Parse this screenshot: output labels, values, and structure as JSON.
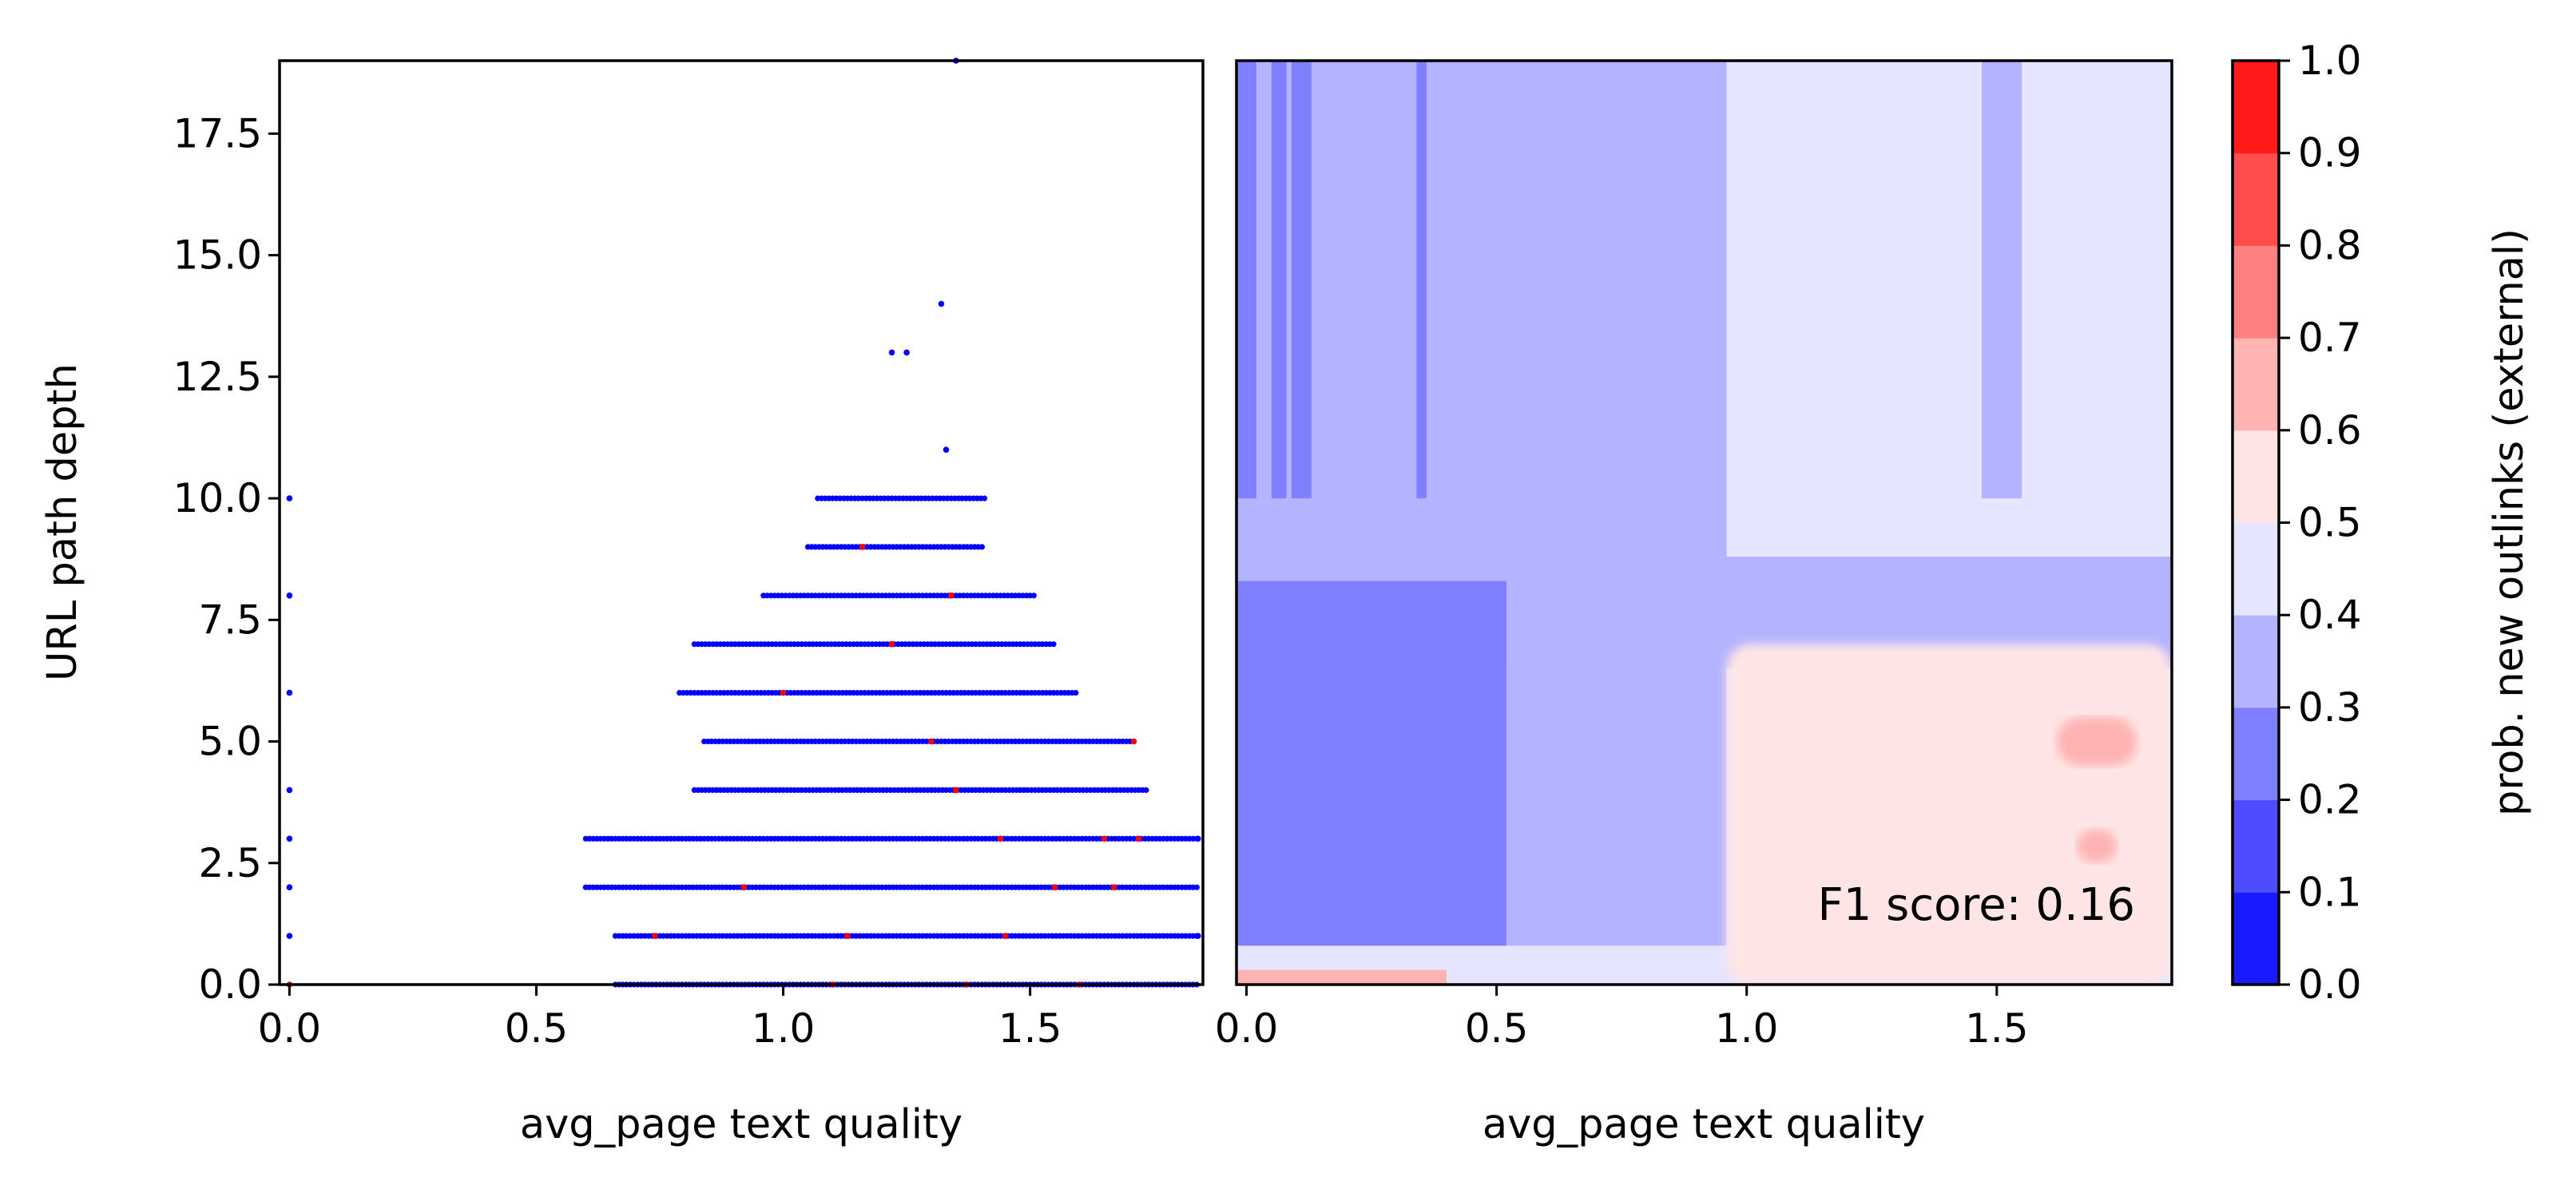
{
  "chart_data": [
    {
      "type": "scatter",
      "xlabel": "avg_page text quality",
      "ylabel": "URL path depth",
      "xlim": [
        -0.02,
        1.85
      ],
      "ylim": [
        0,
        19
      ],
      "x_ticks": [
        "0.0",
        "0.5",
        "1.0",
        "1.5"
      ],
      "x_tick_values": [
        0.0,
        0.5,
        1.0,
        1.5
      ],
      "y_ticks": [
        "0.0",
        "2.5",
        "5.0",
        "7.5",
        "10.0",
        "12.5",
        "15.0",
        "17.5"
      ],
      "y_tick_values": [
        0.0,
        2.5,
        5.0,
        7.5,
        10.0,
        12.5,
        15.0,
        17.5
      ],
      "grid": false,
      "point_colors": {
        "no_new_external_outlinks": "#0000ff",
        "new_external_outlinks": "#ff0000"
      },
      "rows": [
        {
          "y": 0,
          "x_range": [
            0.66,
            1.84
          ]
        },
        {
          "y": 1,
          "x_range": [
            0.66,
            1.84
          ]
        },
        {
          "y": 2,
          "x_range": [
            0.6,
            1.84
          ]
        },
        {
          "y": 3,
          "x_range": [
            0.6,
            1.84
          ]
        },
        {
          "y": 4,
          "x_range": [
            0.82,
            1.74
          ]
        },
        {
          "y": 5,
          "x_range": [
            0.84,
            1.71
          ]
        },
        {
          "y": 6,
          "x_range": [
            0.79,
            1.6
          ]
        },
        {
          "y": 7,
          "x_range": [
            0.82,
            1.55
          ]
        },
        {
          "y": 8,
          "x_range": [
            0.96,
            1.51
          ]
        },
        {
          "y": 9,
          "x_range": [
            1.05,
            1.41
          ]
        },
        {
          "y": 10,
          "x_range": [
            1.07,
            1.41
          ]
        }
      ],
      "isolated_points": [
        {
          "x": 0.0,
          "y": 0,
          "cls": 1
        },
        {
          "x": 0.0,
          "y": 1,
          "cls": 0
        },
        {
          "x": 0.0,
          "y": 2,
          "cls": 0
        },
        {
          "x": 0.0,
          "y": 3,
          "cls": 0
        },
        {
          "x": 0.0,
          "y": 4,
          "cls": 0
        },
        {
          "x": 0.0,
          "y": 6,
          "cls": 0
        },
        {
          "x": 0.0,
          "y": 8,
          "cls": 0
        },
        {
          "x": 0.0,
          "y": 10,
          "cls": 0
        },
        {
          "x": 1.84,
          "y": 3,
          "cls": 0
        },
        {
          "x": 1.84,
          "y": 1,
          "cls": 0
        },
        {
          "x": 1.33,
          "y": 11,
          "cls": 0
        },
        {
          "x": 1.22,
          "y": 13,
          "cls": 0
        },
        {
          "x": 1.25,
          "y": 13,
          "cls": 0
        },
        {
          "x": 1.32,
          "y": 14,
          "cls": 0
        },
        {
          "x": 1.35,
          "y": 19,
          "cls": 0
        },
        {
          "x": 1.16,
          "y": 9,
          "cls": 1
        },
        {
          "x": 1.71,
          "y": 5,
          "cls": 1
        },
        {
          "x": 1.72,
          "y": 3,
          "cls": 1
        },
        {
          "x": 1.65,
          "y": 3,
          "cls": 1
        },
        {
          "x": 1.44,
          "y": 3,
          "cls": 1
        },
        {
          "x": 1.67,
          "y": 2,
          "cls": 1
        },
        {
          "x": 1.55,
          "y": 2,
          "cls": 1
        },
        {
          "x": 1.35,
          "y": 4,
          "cls": 1
        },
        {
          "x": 1.3,
          "y": 5,
          "cls": 1
        },
        {
          "x": 1.22,
          "y": 7,
          "cls": 1
        },
        {
          "x": 1.34,
          "y": 8,
          "cls": 1
        },
        {
          "x": 1.0,
          "y": 6,
          "cls": 1
        },
        {
          "x": 0.92,
          "y": 2,
          "cls": 1
        },
        {
          "x": 1.13,
          "y": 1,
          "cls": 1
        },
        {
          "x": 0.74,
          "y": 1,
          "cls": 1
        },
        {
          "x": 1.45,
          "y": 1,
          "cls": 1
        },
        {
          "x": 1.37,
          "y": 0,
          "cls": 1
        },
        {
          "x": 1.1,
          "y": 0,
          "cls": 1
        },
        {
          "x": 1.6,
          "y": 0,
          "cls": 1
        }
      ]
    },
    {
      "type": "heatmap",
      "subtype": "filled-contour",
      "xlabel": "avg_page text quality",
      "ylabel": "",
      "xlim": [
        -0.02,
        1.85
      ],
      "ylim": [
        0,
        19
      ],
      "x_ticks": [
        "0.0",
        "0.5",
        "1.0",
        "1.5"
      ],
      "x_tick_values": [
        0.0,
        0.5,
        1.0,
        1.5
      ],
      "annotation": "F1 score: 0.16",
      "regions": [
        {
          "name": "upper-left-band",
          "level": 0.35,
          "x": [
            -0.02,
            0.96
          ],
          "y": [
            8.8,
            19
          ]
        },
        {
          "name": "upper-right-band",
          "level": 0.45,
          "x": [
            0.96,
            1.85
          ],
          "y": [
            8.8,
            19
          ]
        },
        {
          "name": "left-vertical-stripe-1",
          "level": 0.25,
          "x": [
            -0.02,
            0.02
          ],
          "y": [
            10,
            19
          ]
        },
        {
          "name": "left-vertical-stripe-2",
          "level": 0.25,
          "x": [
            0.05,
            0.08
          ],
          "y": [
            10,
            19
          ]
        },
        {
          "name": "left-vertical-stripe-3",
          "level": 0.25,
          "x": [
            0.09,
            0.13
          ],
          "y": [
            10,
            19
          ]
        },
        {
          "name": "left-vertical-stripe-4",
          "level": 0.25,
          "x": [
            0.34,
            0.36
          ],
          "y": [
            10,
            19
          ]
        },
        {
          "name": "right-vertical-stripe",
          "level": 0.35,
          "x": [
            1.47,
            1.55
          ],
          "y": [
            10,
            19
          ]
        },
        {
          "name": "middle-band",
          "level": 0.35,
          "x": [
            -0.02,
            1.85
          ],
          "y": [
            6.5,
            8.8
          ]
        },
        {
          "name": "lower-left-block",
          "level": 0.25,
          "x": [
            -0.02,
            0.52
          ],
          "y": [
            0.8,
            8.3
          ]
        },
        {
          "name": "lower-mid-block",
          "level": 0.35,
          "x": [
            0.52,
            0.96
          ],
          "y": [
            0.8,
            7.8
          ]
        },
        {
          "name": "lower-right-field",
          "level": 0.55,
          "x": [
            0.96,
            1.85
          ],
          "y": [
            0,
            7.0
          ]
        },
        {
          "name": "hot-spot-1",
          "level": 0.65,
          "x": [
            1.62,
            1.78
          ],
          "y": [
            4.5,
            5.5
          ]
        },
        {
          "name": "hot-spot-2",
          "level": 0.65,
          "x": [
            1.66,
            1.74
          ],
          "y": [
            2.5,
            3.2
          ]
        },
        {
          "name": "bottom-strip",
          "level": 0.65,
          "x": [
            -0.02,
            0.4
          ],
          "y": [
            0,
            0.3
          ]
        }
      ]
    }
  ],
  "colorbar": {
    "label": "prob. new outlinks (external)",
    "ticks": [
      "0.0",
      "0.1",
      "0.2",
      "0.3",
      "0.4",
      "0.5",
      "0.6",
      "0.7",
      "0.8",
      "0.9",
      "1.0"
    ],
    "levels": [
      0.0,
      0.1,
      0.2,
      0.3,
      0.4,
      0.5,
      0.6,
      0.7,
      0.8,
      0.9,
      1.0
    ],
    "colors": [
      "#1a1aff",
      "#4d4dff",
      "#8080ff",
      "#b3b3ff",
      "#e5e5ff",
      "#ffe5e5",
      "#ffb3b3",
      "#ff8080",
      "#ff4d4d",
      "#ff1a1a"
    ]
  }
}
